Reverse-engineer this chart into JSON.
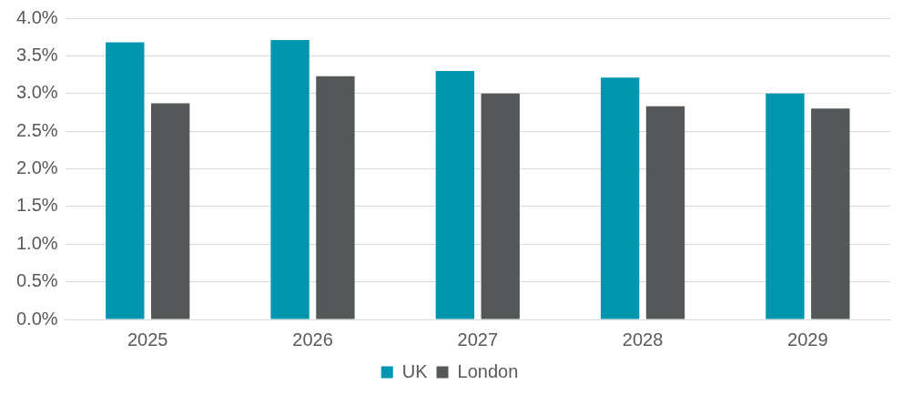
{
  "chart_data": {
    "type": "bar",
    "categories": [
      "2025",
      "2026",
      "2027",
      "2028",
      "2029"
    ],
    "series": [
      {
        "name": "UK",
        "color": "#0096b0",
        "values": [
          3.68,
          3.71,
          3.3,
          3.21,
          3.0
        ]
      },
      {
        "name": "London",
        "color": "#545859",
        "values": [
          2.87,
          3.23,
          3.0,
          2.83,
          2.8
        ]
      }
    ],
    "ylim": [
      0,
      4
    ],
    "yticks": [
      {
        "value": 0,
        "label": "0.0%"
      },
      {
        "value": 0.5,
        "label": "0.5%"
      },
      {
        "value": 1,
        "label": "1.0%"
      },
      {
        "value": 1.5,
        "label": "1.5%"
      },
      {
        "value": 2,
        "label": "2.0%"
      },
      {
        "value": 2.5,
        "label": "2.5%"
      },
      {
        "value": 3,
        "label": "3.0%"
      },
      {
        "value": 3.5,
        "label": "3.5%"
      },
      {
        "value": 4,
        "label": "4.0%"
      }
    ],
    "grid": "y",
    "legend": "bottom"
  }
}
